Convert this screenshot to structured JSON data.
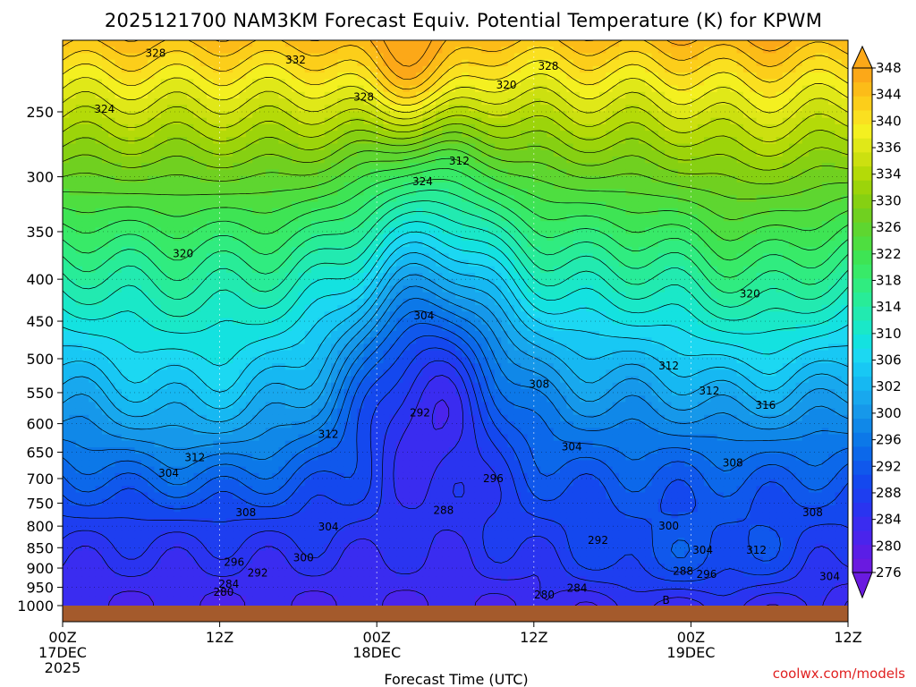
{
  "chart_data": {
    "type": "heatmap",
    "title": "2025121700 NAM3KM Forecast Equiv. Potential Temperature (K) for KPWM",
    "xlabel": "Forecast Time (UTC)",
    "ylabel": "",
    "credit": "coolwx.com/models",
    "x_ticks": [
      {
        "hour": 0,
        "lines": [
          "00Z",
          "17DEC",
          "2025"
        ]
      },
      {
        "hour": 12,
        "lines": [
          "12Z"
        ]
      },
      {
        "hour": 24,
        "lines": [
          "00Z",
          "18DEC"
        ]
      },
      {
        "hour": 36,
        "lines": [
          "12Z"
        ]
      },
      {
        "hour": 48,
        "lines": [
          "00Z",
          "19DEC"
        ]
      },
      {
        "hour": 60,
        "lines": [
          "12Z"
        ]
      }
    ],
    "xlim_hours": [
      0,
      60
    ],
    "y_axis": {
      "scale": "log",
      "inverted": true,
      "ylim": [
        1000,
        200
      ],
      "ticks": [
        250,
        300,
        350,
        400,
        450,
        500,
        550,
        600,
        650,
        700,
        750,
        800,
        850,
        900,
        950,
        1000
      ]
    },
    "colorbar": {
      "levels": [
        276,
        278,
        280,
        282,
        284,
        286,
        288,
        290,
        292,
        294,
        296,
        298,
        300,
        302,
        304,
        306,
        308,
        310,
        312,
        314,
        316,
        318,
        320,
        322,
        324,
        326,
        328,
        330,
        332,
        334,
        336,
        338,
        340,
        342,
        344,
        346,
        348
      ],
      "labels": [
        276,
        280,
        284,
        288,
        292,
        296,
        300,
        302,
        306,
        310,
        314,
        318,
        322,
        326,
        330,
        334,
        336,
        340,
        344,
        348
      ],
      "colors": [
        "#6a1ae0",
        "#5a1ee6",
        "#4a24ec",
        "#3a2cf0",
        "#2a34f0",
        "#1e3ef0",
        "#1448ee",
        "#1058ec",
        "#0c68ea",
        "#0c78e8",
        "#1088e8",
        "#1698ea",
        "#18a8ee",
        "#16b8f2",
        "#18c8f4",
        "#1cd8f2",
        "#14e2e0",
        "#1ae8c8",
        "#22eab0",
        "#28ec98",
        "#30ec80",
        "#38ea68",
        "#3ee454",
        "#4ede40",
        "#5ed630",
        "#70d020",
        "#86d012",
        "#9cd40a",
        "#b4da08",
        "#cce010",
        "#e0e818",
        "#f4f020",
        "#fae020",
        "#fcce1a",
        "#fcbc18",
        "#fca818"
      ],
      "extend": "both"
    },
    "contour_labels": [
      {
        "hour": 7.1,
        "p": 212,
        "text": "328"
      },
      {
        "hour": 17.8,
        "p": 216,
        "text": "332"
      },
      {
        "hour": 37.1,
        "p": 220,
        "text": "328"
      },
      {
        "hour": 33.9,
        "p": 232,
        "text": "320"
      },
      {
        "hour": 23,
        "p": 240,
        "text": "328"
      },
      {
        "hour": 3.2,
        "p": 248,
        "text": "324"
      },
      {
        "hour": 30.3,
        "p": 287,
        "text": "312"
      },
      {
        "hour": 27.5,
        "p": 304,
        "text": "324"
      },
      {
        "hour": 9.2,
        "p": 372,
        "text": "320"
      },
      {
        "hour": 52.5,
        "p": 417,
        "text": "320"
      },
      {
        "hour": 27.6,
        "p": 443,
        "text": "304"
      },
      {
        "hour": 46.3,
        "p": 510,
        "text": "312"
      },
      {
        "hour": 36.4,
        "p": 537,
        "text": "308"
      },
      {
        "hour": 49.4,
        "p": 547,
        "text": "312"
      },
      {
        "hour": 53.7,
        "p": 570,
        "text": "316"
      },
      {
        "hour": 27.3,
        "p": 582,
        "text": "292"
      },
      {
        "hour": 20.3,
        "p": 618,
        "text": "312"
      },
      {
        "hour": 38.9,
        "p": 640,
        "text": "304"
      },
      {
        "hour": 10.1,
        "p": 660,
        "text": "312"
      },
      {
        "hour": 51.2,
        "p": 670,
        "text": "308"
      },
      {
        "hour": 8.1,
        "p": 690,
        "text": "304"
      },
      {
        "hour": 32.9,
        "p": 700,
        "text": "296"
      },
      {
        "hour": 14.0,
        "p": 770,
        "text": "308"
      },
      {
        "hour": 29.1,
        "p": 765,
        "text": "288"
      },
      {
        "hour": 57.3,
        "p": 770,
        "text": "308"
      },
      {
        "hour": 20.3,
        "p": 802,
        "text": "304"
      },
      {
        "hour": 46.3,
        "p": 800,
        "text": "300"
      },
      {
        "hour": 40.9,
        "p": 832,
        "text": "292"
      },
      {
        "hour": 48.9,
        "p": 856,
        "text": "304"
      },
      {
        "hour": 53.0,
        "p": 856,
        "text": "312"
      },
      {
        "hour": 18.4,
        "p": 874,
        "text": "300"
      },
      {
        "hour": 13.1,
        "p": 885,
        "text": "296"
      },
      {
        "hour": 47.4,
        "p": 908,
        "text": "288"
      },
      {
        "hour": 49.2,
        "p": 916,
        "text": "296"
      },
      {
        "hour": 14.9,
        "p": 912,
        "text": "292"
      },
      {
        "hour": 58.6,
        "p": 922,
        "text": "304"
      },
      {
        "hour": 12.7,
        "p": 942,
        "text": "284"
      },
      {
        "hour": 39.3,
        "p": 952,
        "text": "284"
      },
      {
        "hour": 36.8,
        "p": 970,
        "text": "280"
      },
      {
        "hour": 12.3,
        "p": 963,
        "text": "280"
      },
      {
        "hour": 46.1,
        "p": 985,
        "text": "B"
      }
    ]
  }
}
